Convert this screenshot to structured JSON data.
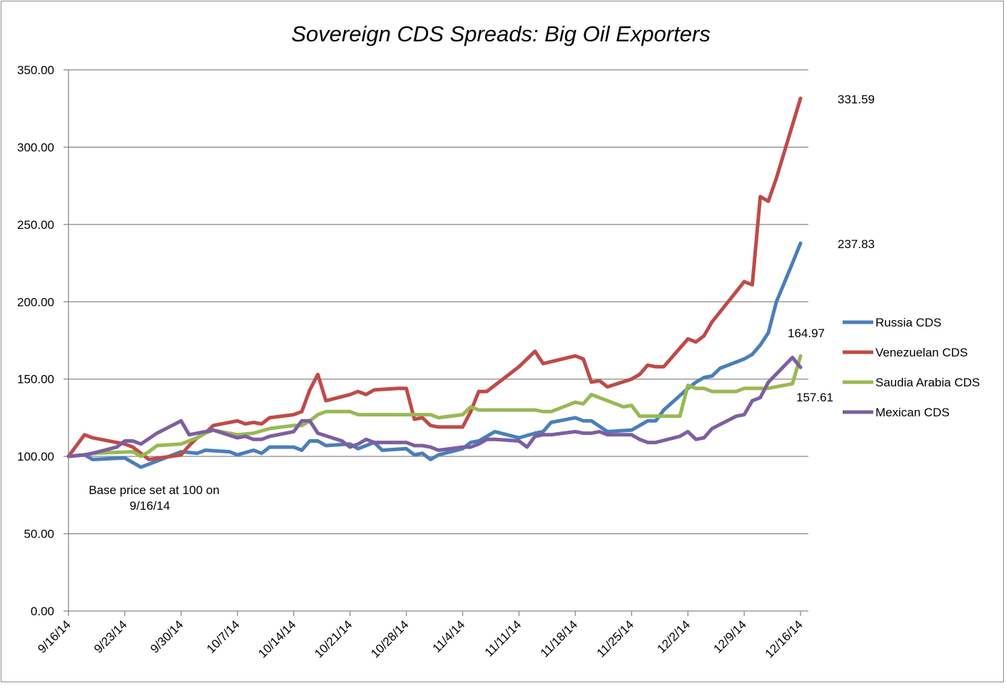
{
  "chart_data": {
    "type": "line",
    "title": "Sovereign CDS Spreads: Big Oil Exporters",
    "xlabel": "",
    "ylabel": "",
    "ylim": [
      0,
      350
    ],
    "yticks": [
      "0.00",
      "50.00",
      "100.00",
      "150.00",
      "200.00",
      "250.00",
      "300.00",
      "350.00"
    ],
    "x_start": "9/16/14",
    "x_end": "12/16/14",
    "x_tick_labels": [
      "9/16/14",
      "9/23/14",
      "9/30/14",
      "10/7/14",
      "10/14/14",
      "10/21/14",
      "10/28/14",
      "11/4/14",
      "11/11/14",
      "11/18/14",
      "11/25/14",
      "12/2/14",
      "12/9/14",
      "12/16/14"
    ],
    "grid": "horizontal",
    "legend_position": "right",
    "annotation": "Base price set at 100 on 9/16/14",
    "end_labels": [
      "331.59",
      "237.83",
      "164.97",
      "157.61"
    ],
    "series": [
      {
        "name": "Russia CDS",
        "color": "#4a7ebb",
        "points": [
          [
            "9/16/14",
            100
          ],
          [
            "9/18/14",
            101
          ],
          [
            "9/19/14",
            98
          ],
          [
            "9/23/14",
            99
          ],
          [
            "9/24/14",
            96
          ],
          [
            "9/25/14",
            93
          ],
          [
            "9/26/14",
            95
          ],
          [
            "9/29/14",
            101
          ],
          [
            "9/30/14",
            103
          ],
          [
            "10/2/14",
            102
          ],
          [
            "10/3/14",
            104
          ],
          [
            "10/6/14",
            103
          ],
          [
            "10/7/14",
            101
          ],
          [
            "10/9/14",
            104
          ],
          [
            "10/10/14",
            102
          ],
          [
            "10/11/14",
            106
          ],
          [
            "10/14/14",
            106
          ],
          [
            "10/15/14",
            104
          ],
          [
            "10/16/14",
            110
          ],
          [
            "10/17/14",
            110
          ],
          [
            "10/18/14",
            107
          ],
          [
            "10/21/14",
            108
          ],
          [
            "10/22/14",
            105
          ],
          [
            "10/23/14",
            107
          ],
          [
            "10/24/14",
            109
          ],
          [
            "10/25/14",
            104
          ],
          [
            "10/28/14",
            105
          ],
          [
            "10/29/14",
            101
          ],
          [
            "10/30/14",
            102
          ],
          [
            "10/31/14",
            98
          ],
          [
            "11/1/14",
            101
          ],
          [
            "11/4/14",
            105
          ],
          [
            "11/5/14",
            109
          ],
          [
            "11/6/14",
            110
          ],
          [
            "11/8/14",
            116
          ],
          [
            "11/11/14",
            112
          ],
          [
            "11/13/14",
            115
          ],
          [
            "11/14/14",
            116
          ],
          [
            "11/15/14",
            122
          ],
          [
            "11/18/14",
            125
          ],
          [
            "11/19/14",
            123
          ],
          [
            "11/20/14",
            123
          ],
          [
            "11/22/14",
            116
          ],
          [
            "11/25/14",
            117
          ],
          [
            "11/27/14",
            123
          ],
          [
            "11/28/14",
            123
          ],
          [
            "11/29/14",
            130
          ],
          [
            "12/2/14",
            144
          ],
          [
            "12/3/14",
            148
          ],
          [
            "12/4/14",
            151
          ],
          [
            "12/5/14",
            152
          ],
          [
            "12/6/14",
            157
          ],
          [
            "12/9/14",
            163
          ],
          [
            "12/10/14",
            166
          ],
          [
            "12/11/14",
            172
          ],
          [
            "12/12/14",
            180
          ],
          [
            "12/13/14",
            200
          ],
          [
            "12/15/14",
            225
          ],
          [
            "12/16/14",
            237.83
          ]
        ]
      },
      {
        "name": "Venezuelan CDS",
        "color": "#be4b48",
        "points": [
          [
            "9/16/14",
            100
          ],
          [
            "9/18/14",
            114
          ],
          [
            "9/19/14",
            112
          ],
          [
            "9/23/14",
            108
          ],
          [
            "9/24/14",
            106
          ],
          [
            "9/26/14",
            98
          ],
          [
            "9/30/14",
            101
          ],
          [
            "10/1/14",
            107
          ],
          [
            "10/2/14",
            112
          ],
          [
            "10/3/14",
            115
          ],
          [
            "10/4/14",
            120
          ],
          [
            "10/7/14",
            123
          ],
          [
            "10/8/14",
            121
          ],
          [
            "10/9/14",
            122
          ],
          [
            "10/10/14",
            121
          ],
          [
            "10/11/14",
            125
          ],
          [
            "10/14/14",
            127
          ],
          [
            "10/15/14",
            129
          ],
          [
            "10/16/14",
            143
          ],
          [
            "10/17/14",
            153
          ],
          [
            "10/18/14",
            136
          ],
          [
            "10/21/14",
            140
          ],
          [
            "10/22/14",
            142
          ],
          [
            "10/23/14",
            140
          ],
          [
            "10/24/14",
            143
          ],
          [
            "10/27/14",
            144
          ],
          [
            "10/28/14",
            144
          ],
          [
            "10/29/14",
            124
          ],
          [
            "10/30/14",
            125
          ],
          [
            "10/31/14",
            120
          ],
          [
            "11/1/14",
            119
          ],
          [
            "11/4/14",
            119
          ],
          [
            "11/5/14",
            129
          ],
          [
            "11/6/14",
            142
          ],
          [
            "11/7/14",
            142
          ],
          [
            "11/11/14",
            158
          ],
          [
            "11/13/14",
            168
          ],
          [
            "11/14/14",
            160
          ],
          [
            "11/18/14",
            165
          ],
          [
            "11/19/14",
            163
          ],
          [
            "11/20/14",
            148
          ],
          [
            "11/21/14",
            149
          ],
          [
            "11/22/14",
            145
          ],
          [
            "11/25/14",
            150
          ],
          [
            "11/26/14",
            153
          ],
          [
            "11/27/14",
            159
          ],
          [
            "11/28/14",
            158
          ],
          [
            "11/29/14",
            158
          ],
          [
            "12/2/14",
            176
          ],
          [
            "12/3/14",
            174
          ],
          [
            "12/4/14",
            178
          ],
          [
            "12/5/14",
            187
          ],
          [
            "12/9/14",
            213
          ],
          [
            "12/10/14",
            211
          ],
          [
            "12/11/14",
            268
          ],
          [
            "12/12/14",
            265
          ],
          [
            "12/13/14",
            280
          ],
          [
            "12/16/14",
            331.59
          ]
        ]
      },
      {
        "name": "Saudia Arabia CDS",
        "color": "#98b954",
        "points": [
          [
            "9/16/14",
            100
          ],
          [
            "9/18/14",
            101
          ],
          [
            "9/19/14",
            102
          ],
          [
            "9/24/14",
            103
          ],
          [
            "9/25/14",
            100
          ],
          [
            "9/26/14",
            103
          ],
          [
            "9/27/14",
            107
          ],
          [
            "9/30/14",
            108
          ],
          [
            "10/2/14",
            112
          ],
          [
            "10/3/14",
            115
          ],
          [
            "10/4/14",
            117
          ],
          [
            "10/7/14",
            114
          ],
          [
            "10/9/14",
            115
          ],
          [
            "10/11/14",
            118
          ],
          [
            "10/14/14",
            120
          ],
          [
            "10/15/14",
            120
          ],
          [
            "10/16/14",
            123
          ],
          [
            "10/17/14",
            127
          ],
          [
            "10/18/14",
            129
          ],
          [
            "10/21/14",
            129
          ],
          [
            "10/22/14",
            127
          ],
          [
            "10/28/14",
            127
          ],
          [
            "10/31/14",
            127
          ],
          [
            "11/1/14",
            125
          ],
          [
            "11/4/14",
            127
          ],
          [
            "11/5/14",
            132
          ],
          [
            "11/6/14",
            130
          ],
          [
            "11/13/14",
            130
          ],
          [
            "11/14/14",
            129
          ],
          [
            "11/15/14",
            129
          ],
          [
            "11/18/14",
            135
          ],
          [
            "11/19/14",
            134
          ],
          [
            "11/20/14",
            140
          ],
          [
            "11/24/14",
            132
          ],
          [
            "11/25/14",
            133
          ],
          [
            "11/26/14",
            126
          ],
          [
            "12/1/14",
            126
          ],
          [
            "12/2/14",
            146
          ],
          [
            "12/3/14",
            144
          ],
          [
            "12/4/14",
            144
          ],
          [
            "12/5/14",
            142
          ],
          [
            "12/8/14",
            142
          ],
          [
            "12/9/14",
            144
          ],
          [
            "12/12/14",
            144
          ],
          [
            "12/15/14",
            147
          ],
          [
            "12/16/14",
            164.97
          ]
        ]
      },
      {
        "name": "Mexican CDS",
        "color": "#7d5fa0",
        "points": [
          [
            "9/16/14",
            100
          ],
          [
            "9/18/14",
            101
          ],
          [
            "9/19/14",
            102
          ],
          [
            "9/22/14",
            106
          ],
          [
            "9/23/14",
            110
          ],
          [
            "9/24/14",
            110
          ],
          [
            "9/25/14",
            108
          ],
          [
            "9/27/14",
            115
          ],
          [
            "9/30/14",
            123
          ],
          [
            "10/1/14",
            114
          ],
          [
            "10/2/14",
            115
          ],
          [
            "10/3/14",
            116
          ],
          [
            "10/4/14",
            117
          ],
          [
            "10/7/14",
            112
          ],
          [
            "10/8/14",
            113
          ],
          [
            "10/9/14",
            111
          ],
          [
            "10/10/14",
            111
          ],
          [
            "10/11/14",
            113
          ],
          [
            "10/14/14",
            116
          ],
          [
            "10/15/14",
            123
          ],
          [
            "10/16/14",
            123
          ],
          [
            "10/17/14",
            115
          ],
          [
            "10/20/14",
            110
          ],
          [
            "10/21/14",
            106
          ],
          [
            "10/22/14",
            108
          ],
          [
            "10/23/14",
            111
          ],
          [
            "10/24/14",
            109
          ],
          [
            "10/28/14",
            109
          ],
          [
            "10/29/14",
            107
          ],
          [
            "10/30/14",
            107
          ],
          [
            "10/31/14",
            106
          ],
          [
            "11/1/14",
            104
          ],
          [
            "11/4/14",
            106
          ],
          [
            "11/5/14",
            106
          ],
          [
            "11/6/14",
            108
          ],
          [
            "11/7/14",
            111
          ],
          [
            "11/8/14",
            111
          ],
          [
            "11/11/14",
            110
          ],
          [
            "11/12/14",
            106
          ],
          [
            "11/13/14",
            113
          ],
          [
            "11/14/14",
            114
          ],
          [
            "11/15/14",
            114
          ],
          [
            "11/18/14",
            116
          ],
          [
            "11/19/14",
            115
          ],
          [
            "11/20/14",
            115
          ],
          [
            "11/21/14",
            116
          ],
          [
            "11/22/14",
            114
          ],
          [
            "11/25/14",
            114
          ],
          [
            "11/26/14",
            111
          ],
          [
            "11/27/14",
            109
          ],
          [
            "11/28/14",
            109
          ],
          [
            "12/1/14",
            113
          ],
          [
            "12/2/14",
            116
          ],
          [
            "12/3/14",
            111
          ],
          [
            "12/4/14",
            112
          ],
          [
            "12/5/14",
            118
          ],
          [
            "12/8/14",
            126
          ],
          [
            "12/9/14",
            127
          ],
          [
            "12/10/14",
            136
          ],
          [
            "12/11/14",
            138
          ],
          [
            "12/12/14",
            148
          ],
          [
            "12/15/14",
            164
          ],
          [
            "12/16/14",
            157.61
          ]
        ]
      }
    ]
  }
}
